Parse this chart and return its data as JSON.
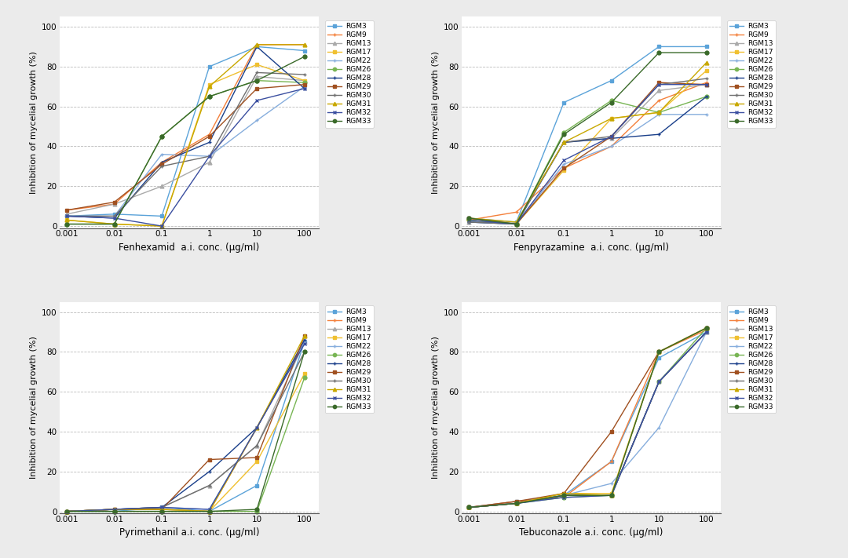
{
  "x_values": [
    0.001,
    0.01,
    0.1,
    1.0,
    10.0,
    100.0
  ],
  "strains": [
    "RGM3",
    "RGM9",
    "RGM13",
    "RGM17",
    "RGM22",
    "RGM26",
    "RGM28",
    "RGM29",
    "RGM30",
    "RGM31",
    "RGM32",
    "RGM33"
  ],
  "colors": [
    "#5BA3D9",
    "#F4803B",
    "#AAAAAA",
    "#F0C030",
    "#87AEDD",
    "#78B554",
    "#1A3F8A",
    "#A05020",
    "#707070",
    "#C8A800",
    "#3B4FA0",
    "#3A6A2A"
  ],
  "markers": [
    "s",
    "+",
    "^",
    "s",
    "+",
    "o",
    "+",
    "s",
    "+",
    "^",
    "x",
    "o"
  ],
  "fenhexamid": [
    [
      5,
      6,
      5,
      80,
      90,
      88
    ],
    [
      8,
      11,
      32,
      46,
      91,
      91
    ],
    [
      6,
      11,
      20,
      32,
      75,
      73
    ],
    [
      3,
      1,
      0,
      71,
      81,
      73
    ],
    [
      5,
      5,
      36,
      35,
      53,
      70
    ],
    [
      1,
      1,
      45,
      65,
      73,
      72
    ],
    [
      5,
      4,
      32,
      42,
      90,
      69
    ],
    [
      8,
      12,
      31,
      45,
      69,
      71
    ],
    [
      5,
      5,
      30,
      35,
      77,
      76
    ],
    [
      3,
      1,
      0,
      70,
      91,
      91
    ],
    [
      5,
      4,
      0,
      35,
      63,
      69
    ],
    [
      1,
      1,
      45,
      65,
      73,
      85
    ]
  ],
  "fenpyrazamine": [
    [
      4,
      2,
      62,
      73,
      90,
      90
    ],
    [
      3,
      7,
      29,
      40,
      63,
      72
    ],
    [
      2,
      2,
      42,
      44,
      68,
      71
    ],
    [
      3,
      1,
      28,
      54,
      57,
      78
    ],
    [
      2,
      1,
      31,
      40,
      56,
      56
    ],
    [
      3,
      1,
      47,
      63,
      57,
      65
    ],
    [
      2,
      1,
      42,
      44,
      46,
      65
    ],
    [
      4,
      1,
      29,
      45,
      72,
      71
    ],
    [
      2,
      1,
      42,
      45,
      71,
      74
    ],
    [
      4,
      2,
      42,
      54,
      57,
      82
    ],
    [
      3,
      1,
      33,
      45,
      71,
      71
    ],
    [
      4,
      1,
      46,
      62,
      87,
      87
    ]
  ],
  "pyrimethanil": [
    [
      0,
      0,
      2,
      0,
      13,
      85
    ],
    [
      0,
      1,
      1,
      0,
      42,
      85
    ],
    [
      0,
      1,
      2,
      13,
      33,
      85
    ],
    [
      0,
      1,
      1,
      0,
      25,
      69
    ],
    [
      0,
      1,
      2,
      1,
      42,
      85
    ],
    [
      0,
      0,
      0,
      0,
      0,
      67
    ],
    [
      0,
      1,
      2,
      20,
      42,
      86
    ],
    [
      0,
      1,
      1,
      26,
      27,
      88
    ],
    [
      0,
      1,
      2,
      13,
      33,
      80
    ],
    [
      0,
      1,
      1,
      0,
      42,
      88
    ],
    [
      0,
      1,
      2,
      1,
      42,
      84
    ],
    [
      0,
      0,
      0,
      0,
      1,
      80
    ]
  ],
  "tebuconazole": [
    [
      2,
      5,
      8,
      25,
      77,
      90
    ],
    [
      2,
      5,
      7,
      25,
      80,
      91
    ],
    [
      2,
      4,
      8,
      8,
      65,
      90
    ],
    [
      2,
      4,
      9,
      9,
      80,
      92
    ],
    [
      2,
      4,
      8,
      14,
      42,
      90
    ],
    [
      2,
      4,
      7,
      8,
      65,
      92
    ],
    [
      2,
      4,
      8,
      8,
      65,
      90
    ],
    [
      2,
      5,
      9,
      40,
      80,
      92
    ],
    [
      2,
      4,
      8,
      8,
      65,
      90
    ],
    [
      2,
      4,
      9,
      8,
      80,
      92
    ],
    [
      2,
      4,
      7,
      8,
      65,
      90
    ],
    [
      2,
      4,
      8,
      8,
      80,
      92
    ]
  ],
  "xlabels": [
    "Fenhexamid  a.i. conc. (μg/ml)",
    "Fenpyrazamine  a.i. conc. (μg/ml)",
    "Pyrimethanil a.i. conc. (μg/ml)",
    "Tebuconazole a.i. conc. (μg/ml)"
  ],
  "ylabel": "Inhibition of mycelial growth (%)",
  "yticks": [
    0,
    20,
    40,
    60,
    80,
    100
  ],
  "xtick_labels": [
    "0.001",
    "0.01",
    "0.1",
    "1",
    "10",
    "100"
  ],
  "plot_bg": "#FFFFFF",
  "fig_bg": "#EBEBEB",
  "grid_color": "#BBBBBB",
  "border_color": "#CCCCCC"
}
